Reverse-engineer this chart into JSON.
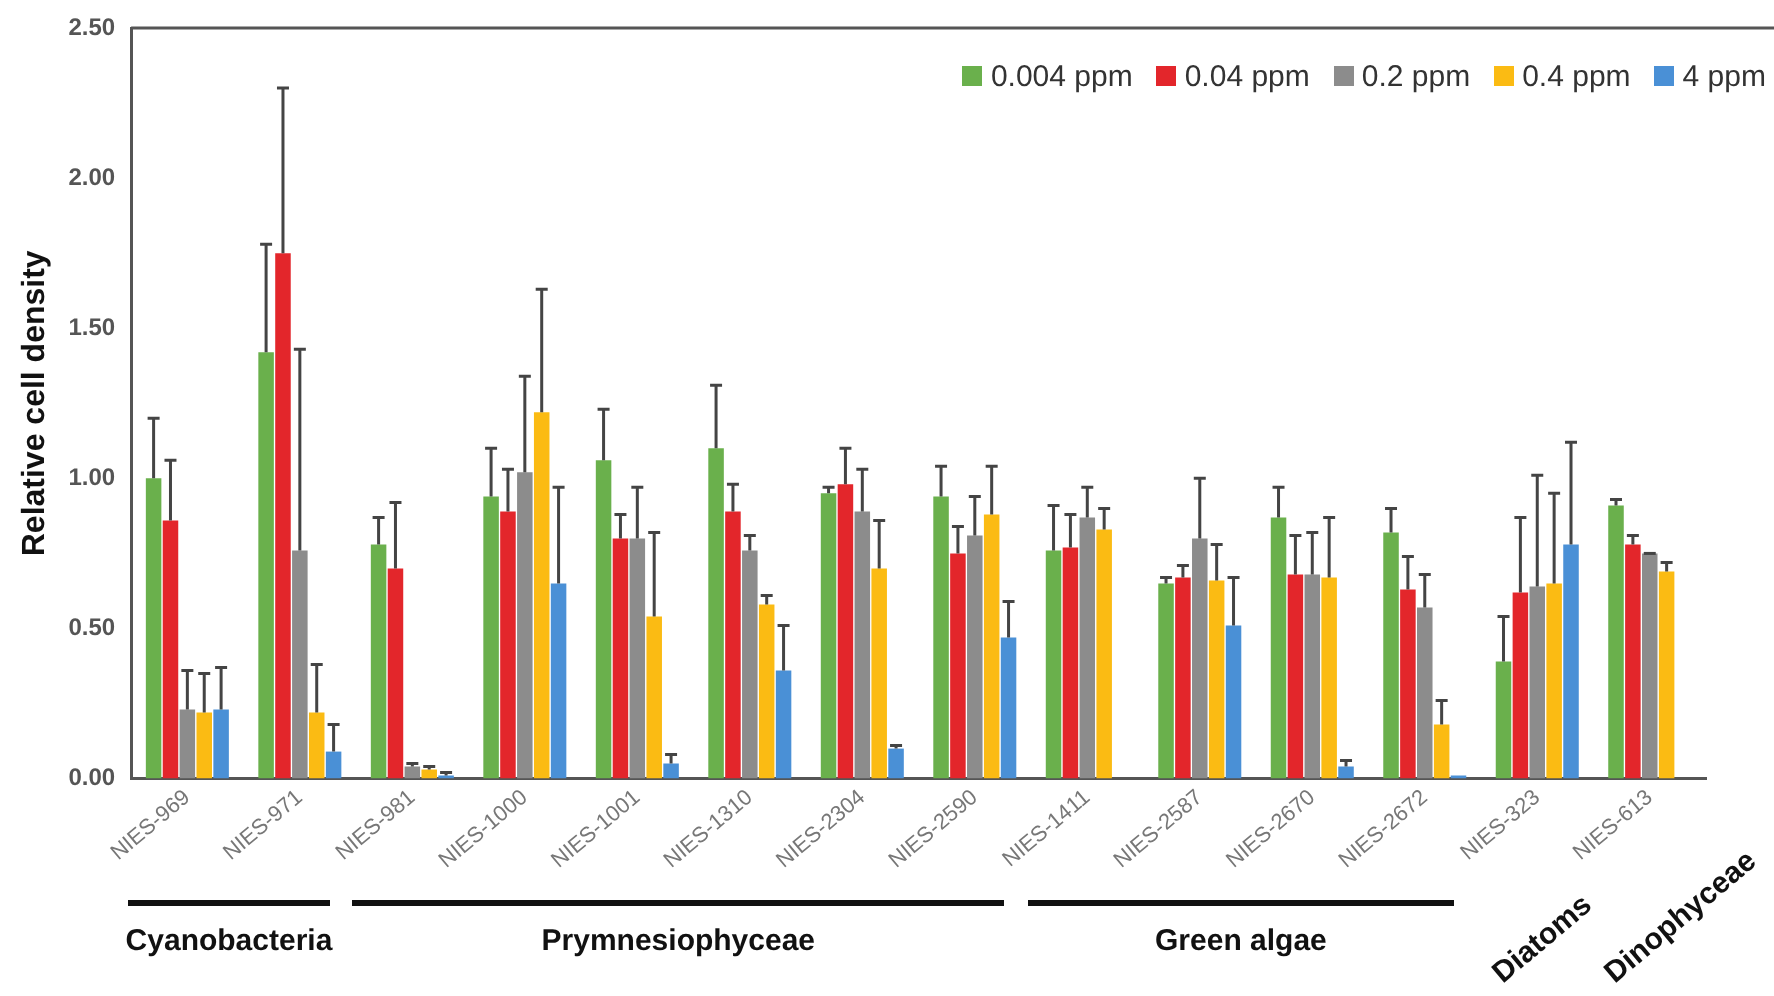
{
  "chart_data": {
    "type": "bar",
    "ylabel": "Relative cell density",
    "categories": [
      "NIES-969",
      "NIES-971",
      "NIES-981",
      "NIES-1000",
      "NIES-1001",
      "NIES-1310",
      "NIES-2304",
      "NIES-2590",
      "NIES-1411",
      "NIES-2587",
      "NIES-2670",
      "NIES-2672",
      "NIES-323",
      "NIES-613"
    ],
    "series": [
      {
        "name": "0.004 ppm",
        "color": "#6ab04c",
        "values": [
          1.0,
          1.42,
          0.78,
          0.94,
          1.06,
          1.1,
          0.95,
          0.94,
          0.76,
          0.65,
          0.87,
          0.82,
          0.39,
          0.91
        ],
        "errors": [
          [
            1.0,
            1.2
          ],
          [
            1.42,
            1.78
          ],
          [
            0.78,
            0.87
          ],
          [
            0.94,
            1.1
          ],
          [
            1.06,
            1.23
          ],
          [
            1.1,
            1.31
          ],
          [
            0.95,
            0.97
          ],
          [
            0.94,
            1.04
          ],
          [
            0.76,
            0.91
          ],
          [
            0.65,
            0.67
          ],
          [
            0.87,
            0.97
          ],
          [
            0.82,
            0.9
          ],
          [
            0.39,
            0.54
          ],
          [
            0.91,
            0.93
          ]
        ]
      },
      {
        "name": "0.04 ppm",
        "color": "#e3262b",
        "values": [
          0.86,
          1.75,
          0.7,
          0.89,
          0.8,
          0.89,
          0.98,
          0.75,
          0.77,
          0.67,
          0.68,
          0.63,
          0.62,
          0.78
        ],
        "errors": [
          [
            0.86,
            1.06
          ],
          [
            1.75,
            2.3
          ],
          [
            0.7,
            0.92
          ],
          [
            0.89,
            1.03
          ],
          [
            0.8,
            0.88
          ],
          [
            0.89,
            0.98
          ],
          [
            0.98,
            1.1
          ],
          [
            0.75,
            0.84
          ],
          [
            0.77,
            0.88
          ],
          [
            0.67,
            0.71
          ],
          [
            0.68,
            0.81
          ],
          [
            0.63,
            0.74
          ],
          [
            0.62,
            0.87
          ],
          [
            0.78,
            0.81
          ]
        ]
      },
      {
        "name": "0.2 ppm",
        "color": "#8c8c8c",
        "values": [
          0.23,
          0.76,
          0.04,
          1.02,
          0.8,
          0.76,
          0.89,
          0.81,
          0.87,
          0.8,
          0.68,
          0.57,
          0.64,
          0.75
        ],
        "errors": [
          [
            0.23,
            0.36
          ],
          [
            0.76,
            1.43
          ],
          [
            0.04,
            0.05
          ],
          [
            1.02,
            1.34
          ],
          [
            0.8,
            0.97
          ],
          [
            0.76,
            0.81
          ],
          [
            0.89,
            1.03
          ],
          [
            0.81,
            0.94
          ],
          [
            0.87,
            0.97
          ],
          [
            0.8,
            1.0
          ],
          [
            0.68,
            0.82
          ],
          [
            0.57,
            0.68
          ],
          [
            0.64,
            1.01
          ],
          [
            0.75,
            0.75
          ]
        ]
      },
      {
        "name": "0.4 ppm",
        "color": "#fbbb13",
        "values": [
          0.22,
          0.22,
          0.03,
          1.22,
          0.54,
          0.58,
          0.7,
          0.88,
          0.83,
          0.66,
          0.67,
          0.18,
          0.65,
          0.69
        ],
        "errors": [
          [
            0.22,
            0.35
          ],
          [
            0.22,
            0.38
          ],
          [
            0.03,
            0.04
          ],
          [
            1.22,
            1.63
          ],
          [
            0.54,
            0.82
          ],
          [
            0.58,
            0.61
          ],
          [
            0.7,
            0.86
          ],
          [
            0.88,
            1.04
          ],
          [
            0.83,
            0.9
          ],
          [
            0.66,
            0.78
          ],
          [
            0.67,
            0.87
          ],
          [
            0.18,
            0.26
          ],
          [
            0.65,
            0.95
          ],
          [
            0.69,
            0.72
          ]
        ]
      },
      {
        "name": "4 ppm",
        "color": "#4a90d6",
        "values": [
          0.23,
          0.09,
          0.01,
          0.65,
          0.05,
          0.36,
          0.1,
          0.47,
          null,
          0.51,
          0.04,
          0.01,
          0.78,
          null
        ],
        "errors": [
          [
            0.23,
            0.37
          ],
          [
            0.09,
            0.18
          ],
          [
            0.01,
            0.02
          ],
          [
            0.65,
            0.97
          ],
          [
            0.05,
            0.08
          ],
          [
            0.36,
            0.51
          ],
          [
            0.1,
            0.11
          ],
          [
            0.47,
            0.59
          ],
          null,
          [
            0.51,
            0.67
          ],
          [
            0.04,
            0.06
          ],
          null,
          [
            0.78,
            1.12
          ],
          null
        ]
      }
    ],
    "ylim": [
      0,
      2.5
    ],
    "yticks": [
      {
        "value": 0,
        "label": "0.00"
      },
      {
        "value": 0.5,
        "label": "0.50"
      },
      {
        "value": 1,
        "label": "1.00"
      },
      {
        "value": 1.5,
        "label": "1.50"
      },
      {
        "value": 2,
        "label": "2.00"
      },
      {
        "value": 2.5,
        "label": "2.50"
      }
    ],
    "grid": false,
    "legend": "top right",
    "annotations": [
      "Cyanobacteria",
      "Prymnesiophyceae",
      "Green algae",
      "Diatoms",
      "Dinophyceae"
    ]
  }
}
